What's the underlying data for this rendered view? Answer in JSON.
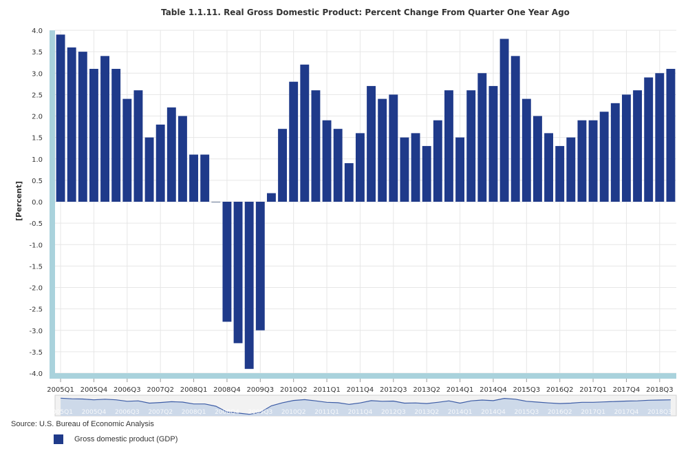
{
  "chart_data": {
    "type": "bar",
    "title": "Table 1.1.11. Real Gross Domestic Product: Percent Change From Quarter One Year Ago",
    "xlabel": "",
    "ylabel": "[Percent]",
    "ylim": [
      -4.0,
      4.0
    ],
    "yticks": [
      "4.0",
      "3.5",
      "3.0",
      "2.5",
      "2.0",
      "1.5",
      "1.0",
      "0.5",
      "0.0",
      "-0.5",
      "-1.0",
      "-1.5",
      "-2.0",
      "-2.5",
      "-3.0",
      "-3.5",
      "-4.0"
    ],
    "xtick_labels": [
      "2005Q1",
      "2005Q4",
      "2006Q3",
      "2007Q2",
      "2008Q1",
      "2008Q4",
      "2009Q3",
      "2010Q2",
      "2011Q1",
      "2011Q4",
      "2012Q3",
      "2013Q2",
      "2014Q1",
      "2014Q4",
      "2015Q3",
      "2016Q2",
      "2017Q1",
      "2017Q4",
      "2018Q3"
    ],
    "categories": [
      "2005Q1",
      "2005Q2",
      "2005Q3",
      "2005Q4",
      "2006Q1",
      "2006Q2",
      "2006Q3",
      "2006Q4",
      "2007Q1",
      "2007Q2",
      "2007Q3",
      "2007Q4",
      "2008Q1",
      "2008Q2",
      "2008Q3",
      "2008Q4",
      "2009Q1",
      "2009Q2",
      "2009Q3",
      "2009Q4",
      "2010Q1",
      "2010Q2",
      "2010Q3",
      "2010Q4",
      "2011Q1",
      "2011Q2",
      "2011Q3",
      "2011Q4",
      "2012Q1",
      "2012Q2",
      "2012Q3",
      "2012Q4",
      "2013Q1",
      "2013Q2",
      "2013Q3",
      "2013Q4",
      "2014Q1",
      "2014Q2",
      "2014Q3",
      "2014Q4",
      "2015Q1",
      "2015Q2",
      "2015Q3",
      "2015Q4",
      "2016Q1",
      "2016Q2",
      "2016Q3",
      "2016Q4",
      "2017Q1",
      "2017Q2",
      "2017Q3",
      "2017Q4",
      "2018Q1",
      "2018Q2",
      "2018Q3",
      "2018Q4"
    ],
    "series": [
      {
        "name": "Gross domestic product (GDP)",
        "color": "#1f3a8a",
        "values": [
          3.9,
          3.6,
          3.5,
          3.1,
          3.4,
          3.1,
          2.4,
          2.6,
          1.5,
          1.8,
          2.2,
          2.0,
          1.1,
          1.1,
          0.0,
          -2.8,
          -3.3,
          -3.9,
          -3.0,
          0.2,
          1.7,
          2.8,
          3.2,
          2.6,
          1.9,
          1.7,
          0.9,
          1.6,
          2.7,
          2.4,
          2.5,
          1.5,
          1.6,
          1.3,
          1.9,
          2.6,
          1.5,
          2.6,
          3.0,
          2.7,
          3.8,
          3.4,
          2.4,
          2.0,
          1.6,
          1.3,
          1.5,
          1.9,
          1.9,
          2.1,
          2.3,
          2.5,
          2.6,
          2.9,
          3.0,
          3.1
        ]
      }
    ],
    "grid": true,
    "legend": "bottom-left"
  },
  "source": "Source: U.S. Bureau of Economic Analysis",
  "legend_items": [
    {
      "label": "Gross domestic product (GDP)",
      "color": "#1f3a8a"
    }
  ],
  "colors": {
    "bar": "#1f3a8a",
    "axis_band": "#a9d2dc",
    "grid": "#e6e6e6",
    "navigator_bg": "#f2f2f2",
    "navigator_mask": "#c9d6e8"
  }
}
